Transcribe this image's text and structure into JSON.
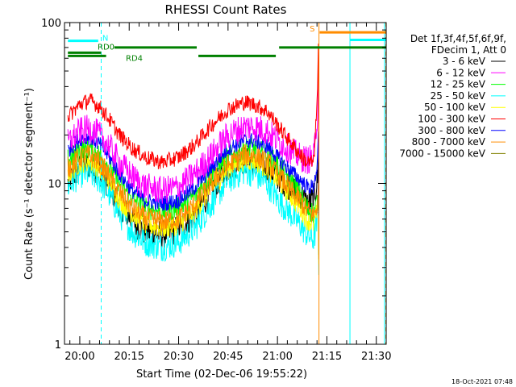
{
  "chart_data": {
    "type": "line",
    "title": "RHESSI Count Rates",
    "xlabel": "Start Time (02-Dec-06 19:55:22)",
    "ylabel": "Count Rate (s⁻¹ detector segment⁻¹)",
    "yscale": "log",
    "ylim": [
      1,
      100
    ],
    "xlim": [
      "19:55:22",
      "21:33:00"
    ],
    "x_ticks": [
      "20:00",
      "20:15",
      "20:30",
      "20:45",
      "21:00",
      "21:15",
      "21:30"
    ],
    "y_ticks": [
      "1",
      "10",
      "100"
    ],
    "grid": false,
    "legend_position": "right",
    "legend_header": [
      "Det 1f,3f,4f,5f,6f,9f,",
      "FDecim 1, Att 0"
    ],
    "footer": "18-Oct-2021 07:48",
    "x_minutes_after_19": [
      56.4,
      60,
      63,
      66,
      69,
      72,
      76,
      80,
      85,
      90,
      95,
      100,
      105,
      110,
      113,
      117,
      120,
      124,
      127,
      129,
      131,
      132.3
    ],
    "series": [
      {
        "name": "3 - 6 keV",
        "color": "#000000",
        "values": [
          10.0,
          12.5,
          13.0,
          12.0,
          9.5,
          7.5,
          5.8,
          5.0,
          4.8,
          5.2,
          6.5,
          9.0,
          12.5,
          14.0,
          13.5,
          12.5,
          11.0,
          9.5,
          8.5,
          7.5,
          8.0,
          11.0
        ]
      },
      {
        "name": "6 - 12 keV",
        "color": "#ff00ff",
        "values": [
          18.0,
          21.0,
          22.0,
          20.0,
          17.0,
          13.5,
          11.0,
          9.5,
          9.0,
          9.5,
          11.5,
          15.0,
          20.0,
          22.5,
          22.5,
          21.0,
          18.5,
          16.0,
          14.5,
          14.0,
          14.5,
          30.0
        ]
      },
      {
        "name": "12 - 25 keV",
        "color": "#00ff00",
        "values": [
          14.0,
          16.0,
          16.5,
          15.0,
          12.5,
          10.0,
          8.0,
          7.0,
          6.7,
          7.0,
          8.5,
          11.5,
          14.5,
          16.5,
          16.5,
          15.0,
          13.0,
          10.5,
          8.5,
          7.0,
          6.5,
          8.0
        ]
      },
      {
        "name": "25 - 50 keV",
        "color": "#00ffff",
        "values": [
          9.5,
          11.5,
          11.5,
          10.5,
          8.5,
          6.5,
          5.0,
          4.3,
          4.0,
          4.3,
          5.3,
          7.5,
          10.5,
          12.0,
          11.5,
          10.0,
          8.0,
          6.5,
          5.5,
          4.8,
          4.5,
          6.0
        ]
      },
      {
        "name": "50 - 100 keV",
        "color": "#ffff00",
        "values": [
          11.5,
          13.5,
          14.0,
          12.5,
          10.5,
          8.0,
          6.5,
          5.6,
          5.3,
          5.6,
          6.8,
          9.5,
          12.5,
          14.0,
          14.0,
          12.5,
          10.5,
          8.5,
          7.0,
          6.0,
          5.6,
          7.0
        ]
      },
      {
        "name": "100 - 300 keV",
        "color": "#ff0000",
        "values": [
          26.0,
          31.0,
          33.0,
          30.0,
          25.0,
          20.0,
          16.5,
          14.5,
          13.5,
          14.5,
          17.5,
          23.0,
          29.0,
          32.0,
          31.0,
          28.0,
          23.0,
          18.0,
          15.0,
          13.5,
          13.5,
          40.0
        ]
      },
      {
        "name": "300 - 800 keV",
        "color": "#0000ff",
        "values": [
          16.0,
          19.0,
          19.5,
          17.5,
          14.5,
          11.5,
          9.0,
          7.8,
          7.5,
          7.8,
          9.5,
          12.5,
          16.5,
          18.5,
          18.5,
          17.0,
          14.5,
          12.0,
          10.5,
          9.5,
          9.5,
          14.0
        ]
      },
      {
        "name": "800 - 7000 keV",
        "color": "#ff8c00",
        "values": [
          12.5,
          14.5,
          15.0,
          13.5,
          11.0,
          8.8,
          7.0,
          6.0,
          5.8,
          6.0,
          7.4,
          10.0,
          13.0,
          15.0,
          15.0,
          13.5,
          11.5,
          9.0,
          7.8,
          6.8,
          6.3,
          7.5
        ]
      },
      {
        "name": "7000 - 15000 keV",
        "color": "#808000",
        "values": [
          null,
          null,
          null,
          null,
          null,
          null,
          null,
          null,
          null,
          null,
          null,
          null,
          null,
          null,
          null,
          null,
          null,
          null,
          null,
          null,
          null,
          null
        ]
      }
    ],
    "annotations": [
      {
        "label": "N",
        "color": "#00ffff",
        "y_value": 77,
        "x_start": 56.4,
        "x_end": 65.6
      },
      {
        "label": "RD0",
        "color": "#008000",
        "y_value": 65,
        "x_start": 56.4,
        "x_end": 66.5
      },
      {
        "label": "RD4",
        "color": "#008000",
        "y_value": 62,
        "x_start": 56.4,
        "x_end": 68.0
      },
      {
        "label": "",
        "color": "#008000",
        "y_value": 70,
        "x_start": 70.5,
        "x_end": 95.5
      },
      {
        "label": "",
        "color": "#008000",
        "y_value": 62,
        "x_start": 96.0,
        "x_end": 119.5
      },
      {
        "label": "",
        "color": "#008000",
        "y_value": 70,
        "x_start": 120.5,
        "x_end": 153.0
      },
      {
        "label": "S",
        "color": "#ff8c00",
        "y_value": 87,
        "x_start": 132.8,
        "x_end": 153.0
      },
      {
        "label": "",
        "color": "#00ffff",
        "y_value": 78,
        "x_start": 142.0,
        "x_end": 153.0
      }
    ],
    "vertical_markers": [
      {
        "minutes_after_19": 66.5,
        "color": "#00ffff",
        "style": "dashed"
      },
      {
        "minutes_after_19": 132.6,
        "color": "#ff8c00",
        "style": "solid"
      },
      {
        "minutes_after_19": 142.0,
        "color": "#00ffff",
        "style": "solid"
      },
      {
        "minutes_after_19": 152.5,
        "color": "#00ffff",
        "style": "solid"
      },
      {
        "minutes_after_19": 152.9,
        "color": "#ff8c00",
        "style": "dashed"
      }
    ]
  }
}
